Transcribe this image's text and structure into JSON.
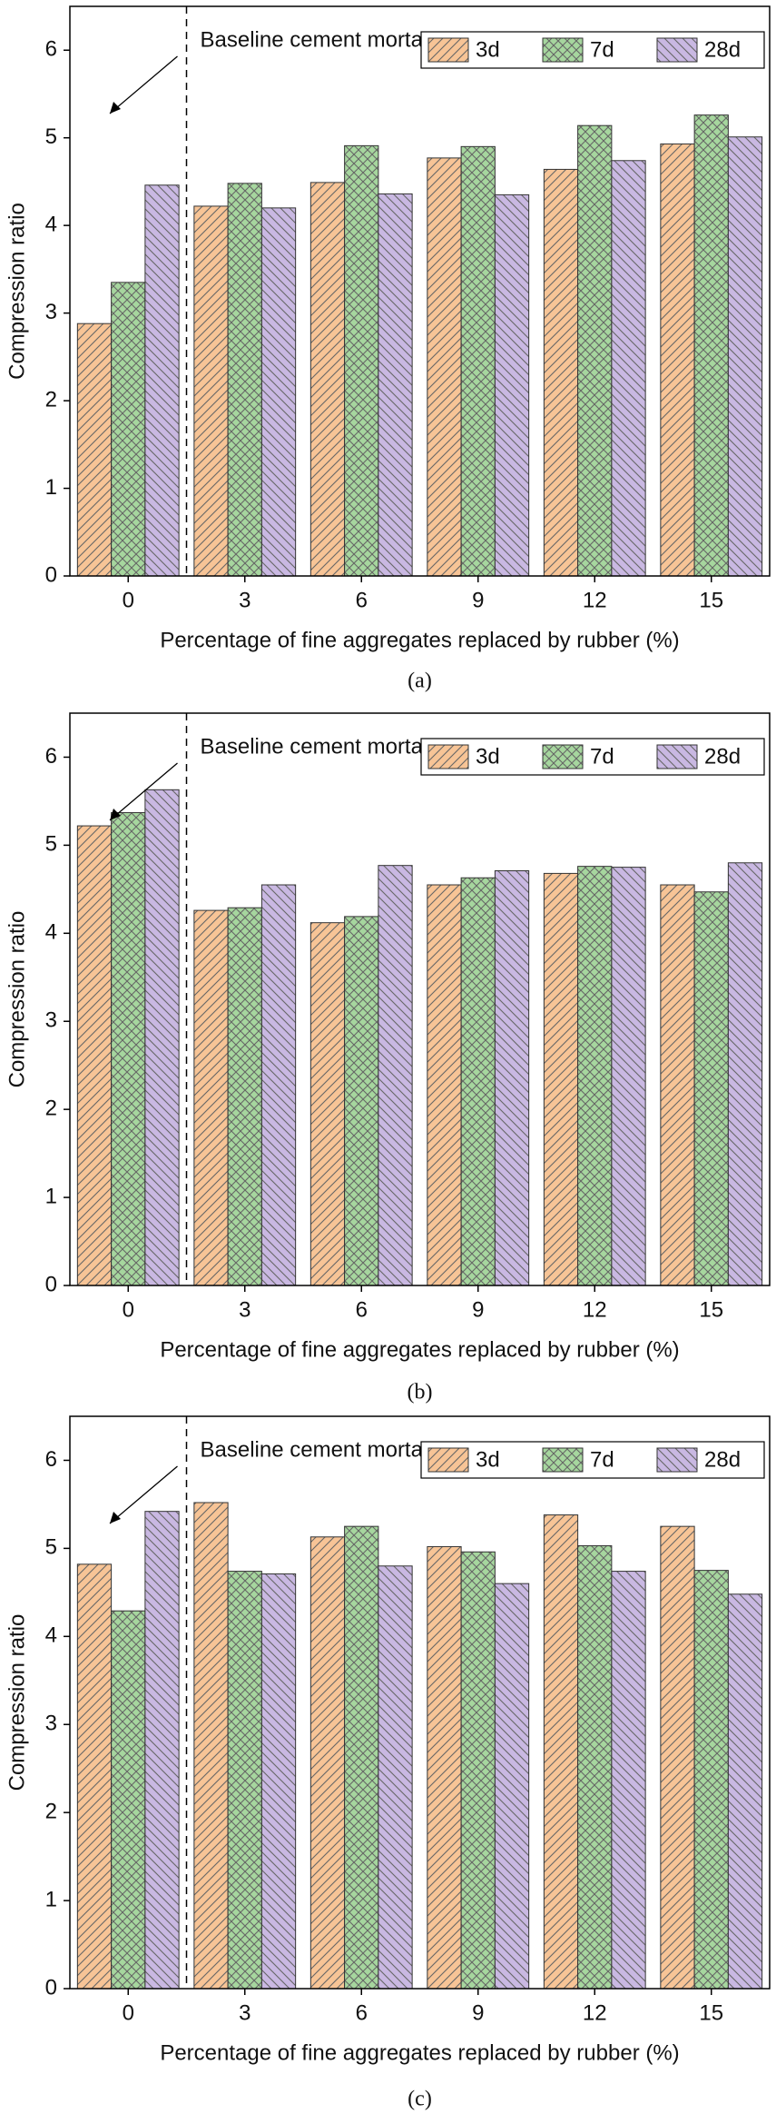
{
  "chart_data": [
    {
      "type": "bar",
      "caption": "(a)",
      "annotation": "Baseline cement mortar",
      "x_label": "Percentage of fine aggregates replaced by rubber (%)",
      "y_label": "Compression ratio",
      "categories": [
        "0",
        "3",
        "6",
        "9",
        "12",
        "15"
      ],
      "series": [
        {
          "name": "3d",
          "color": "#f7c496",
          "values": [
            2.88,
            4.22,
            4.49,
            4.77,
            4.64,
            4.93
          ]
        },
        {
          "name": "7d",
          "color": "#a6d69e",
          "values": [
            3.35,
            4.48,
            4.91,
            4.9,
            5.14,
            5.26
          ]
        },
        {
          "name": "28d",
          "color": "#c9b8e2",
          "values": [
            4.46,
            4.2,
            4.36,
            4.35,
            4.74,
            5.01
          ]
        }
      ],
      "ylim": [
        0,
        6.5
      ],
      "yticks": [
        0,
        1,
        2,
        3,
        4,
        5,
        6
      ],
      "legend": "upper right"
    },
    {
      "type": "bar",
      "caption": "(b)",
      "annotation": "Baseline cement mortar",
      "x_label": "Percentage of fine aggregates replaced by rubber (%)",
      "y_label": "Compression ratio",
      "categories": [
        "0",
        "3",
        "6",
        "9",
        "12",
        "15"
      ],
      "series": [
        {
          "name": "3d",
          "color": "#f7c496",
          "values": [
            5.22,
            4.26,
            4.12,
            4.55,
            4.68,
            4.55
          ]
        },
        {
          "name": "7d",
          "color": "#a6d69e",
          "values": [
            5.37,
            4.29,
            4.19,
            4.63,
            4.76,
            4.47
          ]
        },
        {
          "name": "28d",
          "color": "#c9b8e2",
          "values": [
            5.63,
            4.55,
            4.77,
            4.71,
            4.75,
            4.8
          ]
        }
      ],
      "ylim": [
        0,
        6.5
      ],
      "yticks": [
        0,
        1,
        2,
        3,
        4,
        5,
        6
      ],
      "legend": "upper right"
    },
    {
      "type": "bar",
      "caption": "(c)",
      "annotation": "Baseline cement mortar",
      "x_label": "Percentage of fine aggregates replaced by rubber (%)",
      "y_label": "Compression ratio",
      "categories": [
        "0",
        "3",
        "6",
        "9",
        "12",
        "15"
      ],
      "series": [
        {
          "name": "3d",
          "color": "#f7c496",
          "values": [
            4.82,
            5.52,
            5.13,
            5.02,
            5.38,
            5.25
          ]
        },
        {
          "name": "7d",
          "color": "#a6d69e",
          "values": [
            4.29,
            4.74,
            5.25,
            4.96,
            5.03,
            4.75
          ]
        },
        {
          "name": "28d",
          "color": "#c9b8e2",
          "values": [
            5.42,
            4.71,
            4.8,
            4.6,
            4.74,
            4.48
          ]
        }
      ],
      "ylim": [
        0,
        6.5
      ],
      "yticks": [
        0,
        1,
        2,
        3,
        4,
        5,
        6
      ],
      "legend": "upper right"
    }
  ]
}
